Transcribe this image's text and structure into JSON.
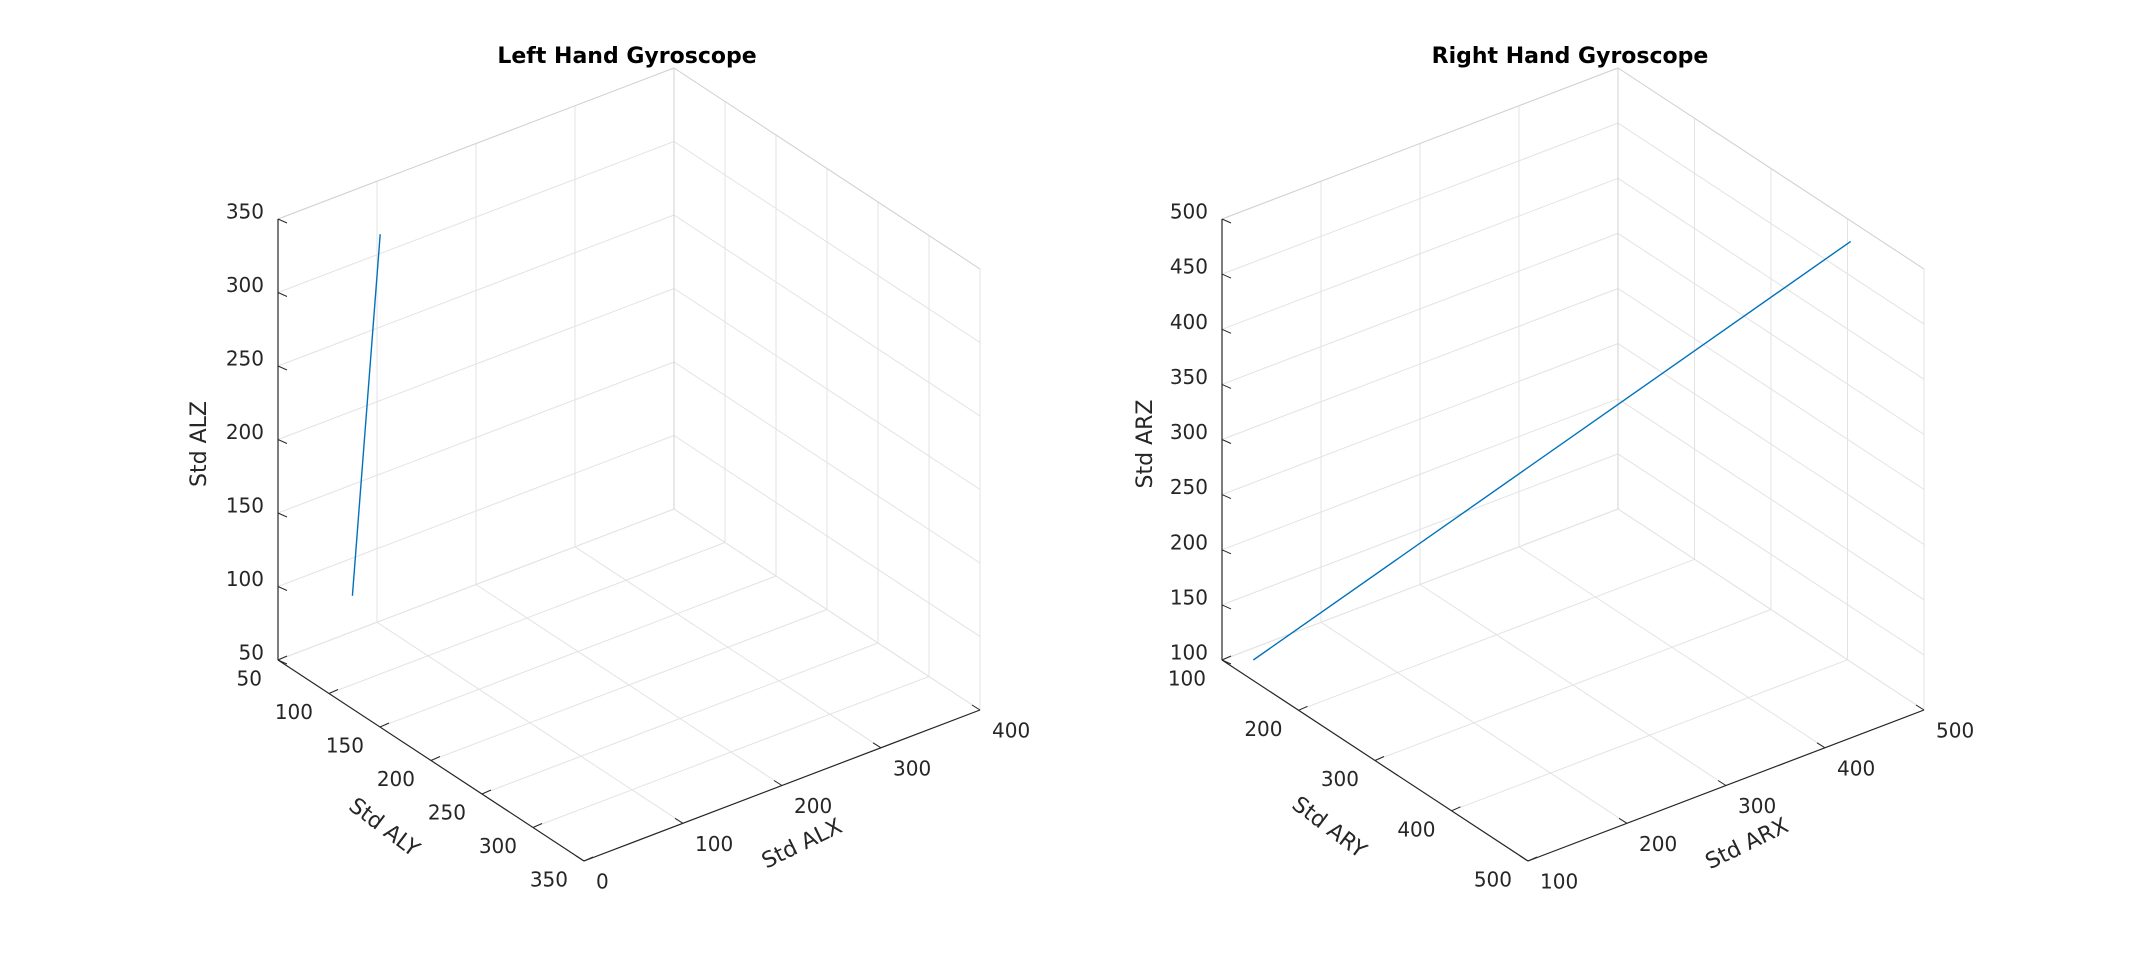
{
  "chart_data": [
    {
      "type": "line3d",
      "title": "Left Hand Gyroscope",
      "xlabel": "Std ALX",
      "ylabel": "Std ALY",
      "zlabel": "Std ALZ",
      "xticks": [
        0,
        100,
        200,
        300,
        400
      ],
      "yticks": [
        50,
        100,
        150,
        200,
        250,
        300,
        350
      ],
      "zticks": [
        50,
        100,
        150,
        200,
        250,
        300,
        350
      ],
      "xlim": [
        0,
        400
      ],
      "ylim": [
        50,
        350
      ],
      "zlim": [
        50,
        350
      ],
      "grid": true,
      "line_color": "#0072BD",
      "series": [
        {
          "points": [
            [
              70,
              55,
              78
            ],
            [
              62,
              90,
              342
            ]
          ]
        }
      ]
    },
    {
      "type": "line3d",
      "title": "Right Hand Gyroscope",
      "xlabel": "Std ARX",
      "ylabel": "Std ARY",
      "zlabel": "Std ARZ",
      "xticks": [
        100,
        200,
        300,
        400,
        500
      ],
      "yticks": [
        100,
        200,
        300,
        400,
        500
      ],
      "zticks": [
        100,
        150,
        200,
        250,
        300,
        350,
        400,
        450,
        500
      ],
      "xlim": [
        100,
        500
      ],
      "ylim": [
        100,
        500
      ],
      "zlim": [
        100,
        500
      ],
      "grid": true,
      "line_color": "#0072BD",
      "series": [
        {
          "points": [
            [
              120,
              115,
              100
            ],
            [
              480,
              430,
              500
            ]
          ]
        }
      ]
    }
  ]
}
